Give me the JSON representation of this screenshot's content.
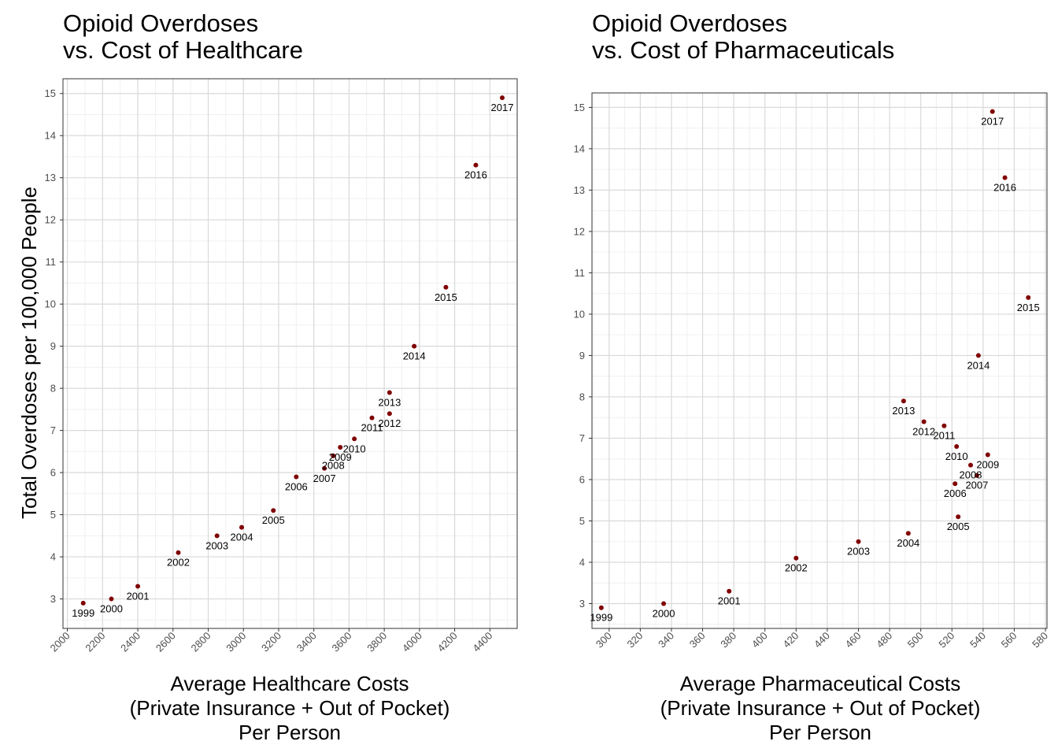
{
  "y_axis_label": "Total Overdoses per 100,000 People",
  "colors": {
    "point": "#800000",
    "grid_major": "#d9d9d9",
    "grid_minor": "#f0f0f0",
    "frame": "#333333",
    "text": "#000000",
    "tick_text": "#4d4d4d"
  },
  "chart_data": [
    {
      "type": "scatter",
      "title": [
        "Opioid Overdoses",
        " vs. Cost of Healthcare"
      ],
      "xlabel": [
        "Average Healthcare Costs",
        "(Private Insurance + Out of Pocket)",
        "Per Person"
      ],
      "ylabel": "Total Overdoses per 100,000 People",
      "xlim": [
        1975,
        4555
      ],
      "ylim": [
        2.3,
        15.35
      ],
      "xticks": [
        2000,
        2200,
        2400,
        2600,
        2800,
        3000,
        3200,
        3400,
        3600,
        3800,
        4000,
        4200,
        4400
      ],
      "yticks": [
        3,
        4,
        5,
        6,
        7,
        8,
        9,
        10,
        11,
        12,
        13,
        14,
        15
      ],
      "grid": true,
      "points": [
        {
          "label": "1999",
          "x": 2090,
          "y": 2.9
        },
        {
          "label": "2000",
          "x": 2250,
          "y": 3.0
        },
        {
          "label": "2001",
          "x": 2400,
          "y": 3.3
        },
        {
          "label": "2002",
          "x": 2630,
          "y": 4.1
        },
        {
          "label": "2003",
          "x": 2850,
          "y": 4.5
        },
        {
          "label": "2004",
          "x": 2990,
          "y": 4.7
        },
        {
          "label": "2005",
          "x": 3170,
          "y": 5.1
        },
        {
          "label": "2006",
          "x": 3300,
          "y": 5.9
        },
        {
          "label": "2007",
          "x": 3460,
          "y": 6.1
        },
        {
          "label": "2008",
          "x": 3510,
          "y": 6.4
        },
        {
          "label": "2009",
          "x": 3550,
          "y": 6.6
        },
        {
          "label": "2010",
          "x": 3630,
          "y": 6.8
        },
        {
          "label": "2011",
          "x": 3730,
          "y": 7.3
        },
        {
          "label": "2012",
          "x": 3830,
          "y": 7.4
        },
        {
          "label": "2013",
          "x": 3830,
          "y": 7.9
        },
        {
          "label": "2014",
          "x": 3970,
          "y": 9.0
        },
        {
          "label": "2015",
          "x": 4150,
          "y": 10.4
        },
        {
          "label": "2016",
          "x": 4320,
          "y": 13.3
        },
        {
          "label": "2017",
          "x": 4470,
          "y": 14.9
        }
      ]
    },
    {
      "type": "scatter",
      "title": [
        "Opioid Overdoses",
        " vs. Cost of Pharmaceuticals"
      ],
      "xlabel": [
        "Average Pharmaceutical Costs",
        "(Private Insurance + Out of Pocket)",
        "Per Person"
      ],
      "ylabel": "",
      "xlim": [
        289,
        581
      ],
      "ylim": [
        2.4,
        15.35
      ],
      "xticks": [
        300,
        320,
        340,
        360,
        380,
        400,
        420,
        440,
        460,
        480,
        500,
        520,
        540,
        560,
        580
      ],
      "yticks": [
        3,
        4,
        5,
        6,
        7,
        8,
        9,
        10,
        11,
        12,
        13,
        14,
        15
      ],
      "grid": true,
      "points": [
        {
          "label": "1999",
          "x": 295,
          "y": 2.9
        },
        {
          "label": "2000",
          "x": 335,
          "y": 3.0
        },
        {
          "label": "2001",
          "x": 377,
          "y": 3.3
        },
        {
          "label": "2002",
          "x": 420,
          "y": 4.1
        },
        {
          "label": "2003",
          "x": 460,
          "y": 4.5
        },
        {
          "label": "2004",
          "x": 492,
          "y": 4.7
        },
        {
          "label": "2005",
          "x": 524,
          "y": 5.1
        },
        {
          "label": "2006",
          "x": 522,
          "y": 5.9
        },
        {
          "label": "2007",
          "x": 536,
          "y": 6.1
        },
        {
          "label": "2008",
          "x": 532,
          "y": 6.35
        },
        {
          "label": "2009",
          "x": 543,
          "y": 6.6
        },
        {
          "label": "2010",
          "x": 523,
          "y": 6.8
        },
        {
          "label": "2011",
          "x": 515,
          "y": 7.3
        },
        {
          "label": "2012",
          "x": 502,
          "y": 7.4
        },
        {
          "label": "2013",
          "x": 489,
          "y": 7.9
        },
        {
          "label": "2014",
          "x": 537,
          "y": 9.0
        },
        {
          "label": "2015",
          "x": 569,
          "y": 10.4
        },
        {
          "label": "2016",
          "x": 554,
          "y": 13.3
        },
        {
          "label": "2017",
          "x": 546,
          "y": 14.9
        }
      ]
    }
  ]
}
